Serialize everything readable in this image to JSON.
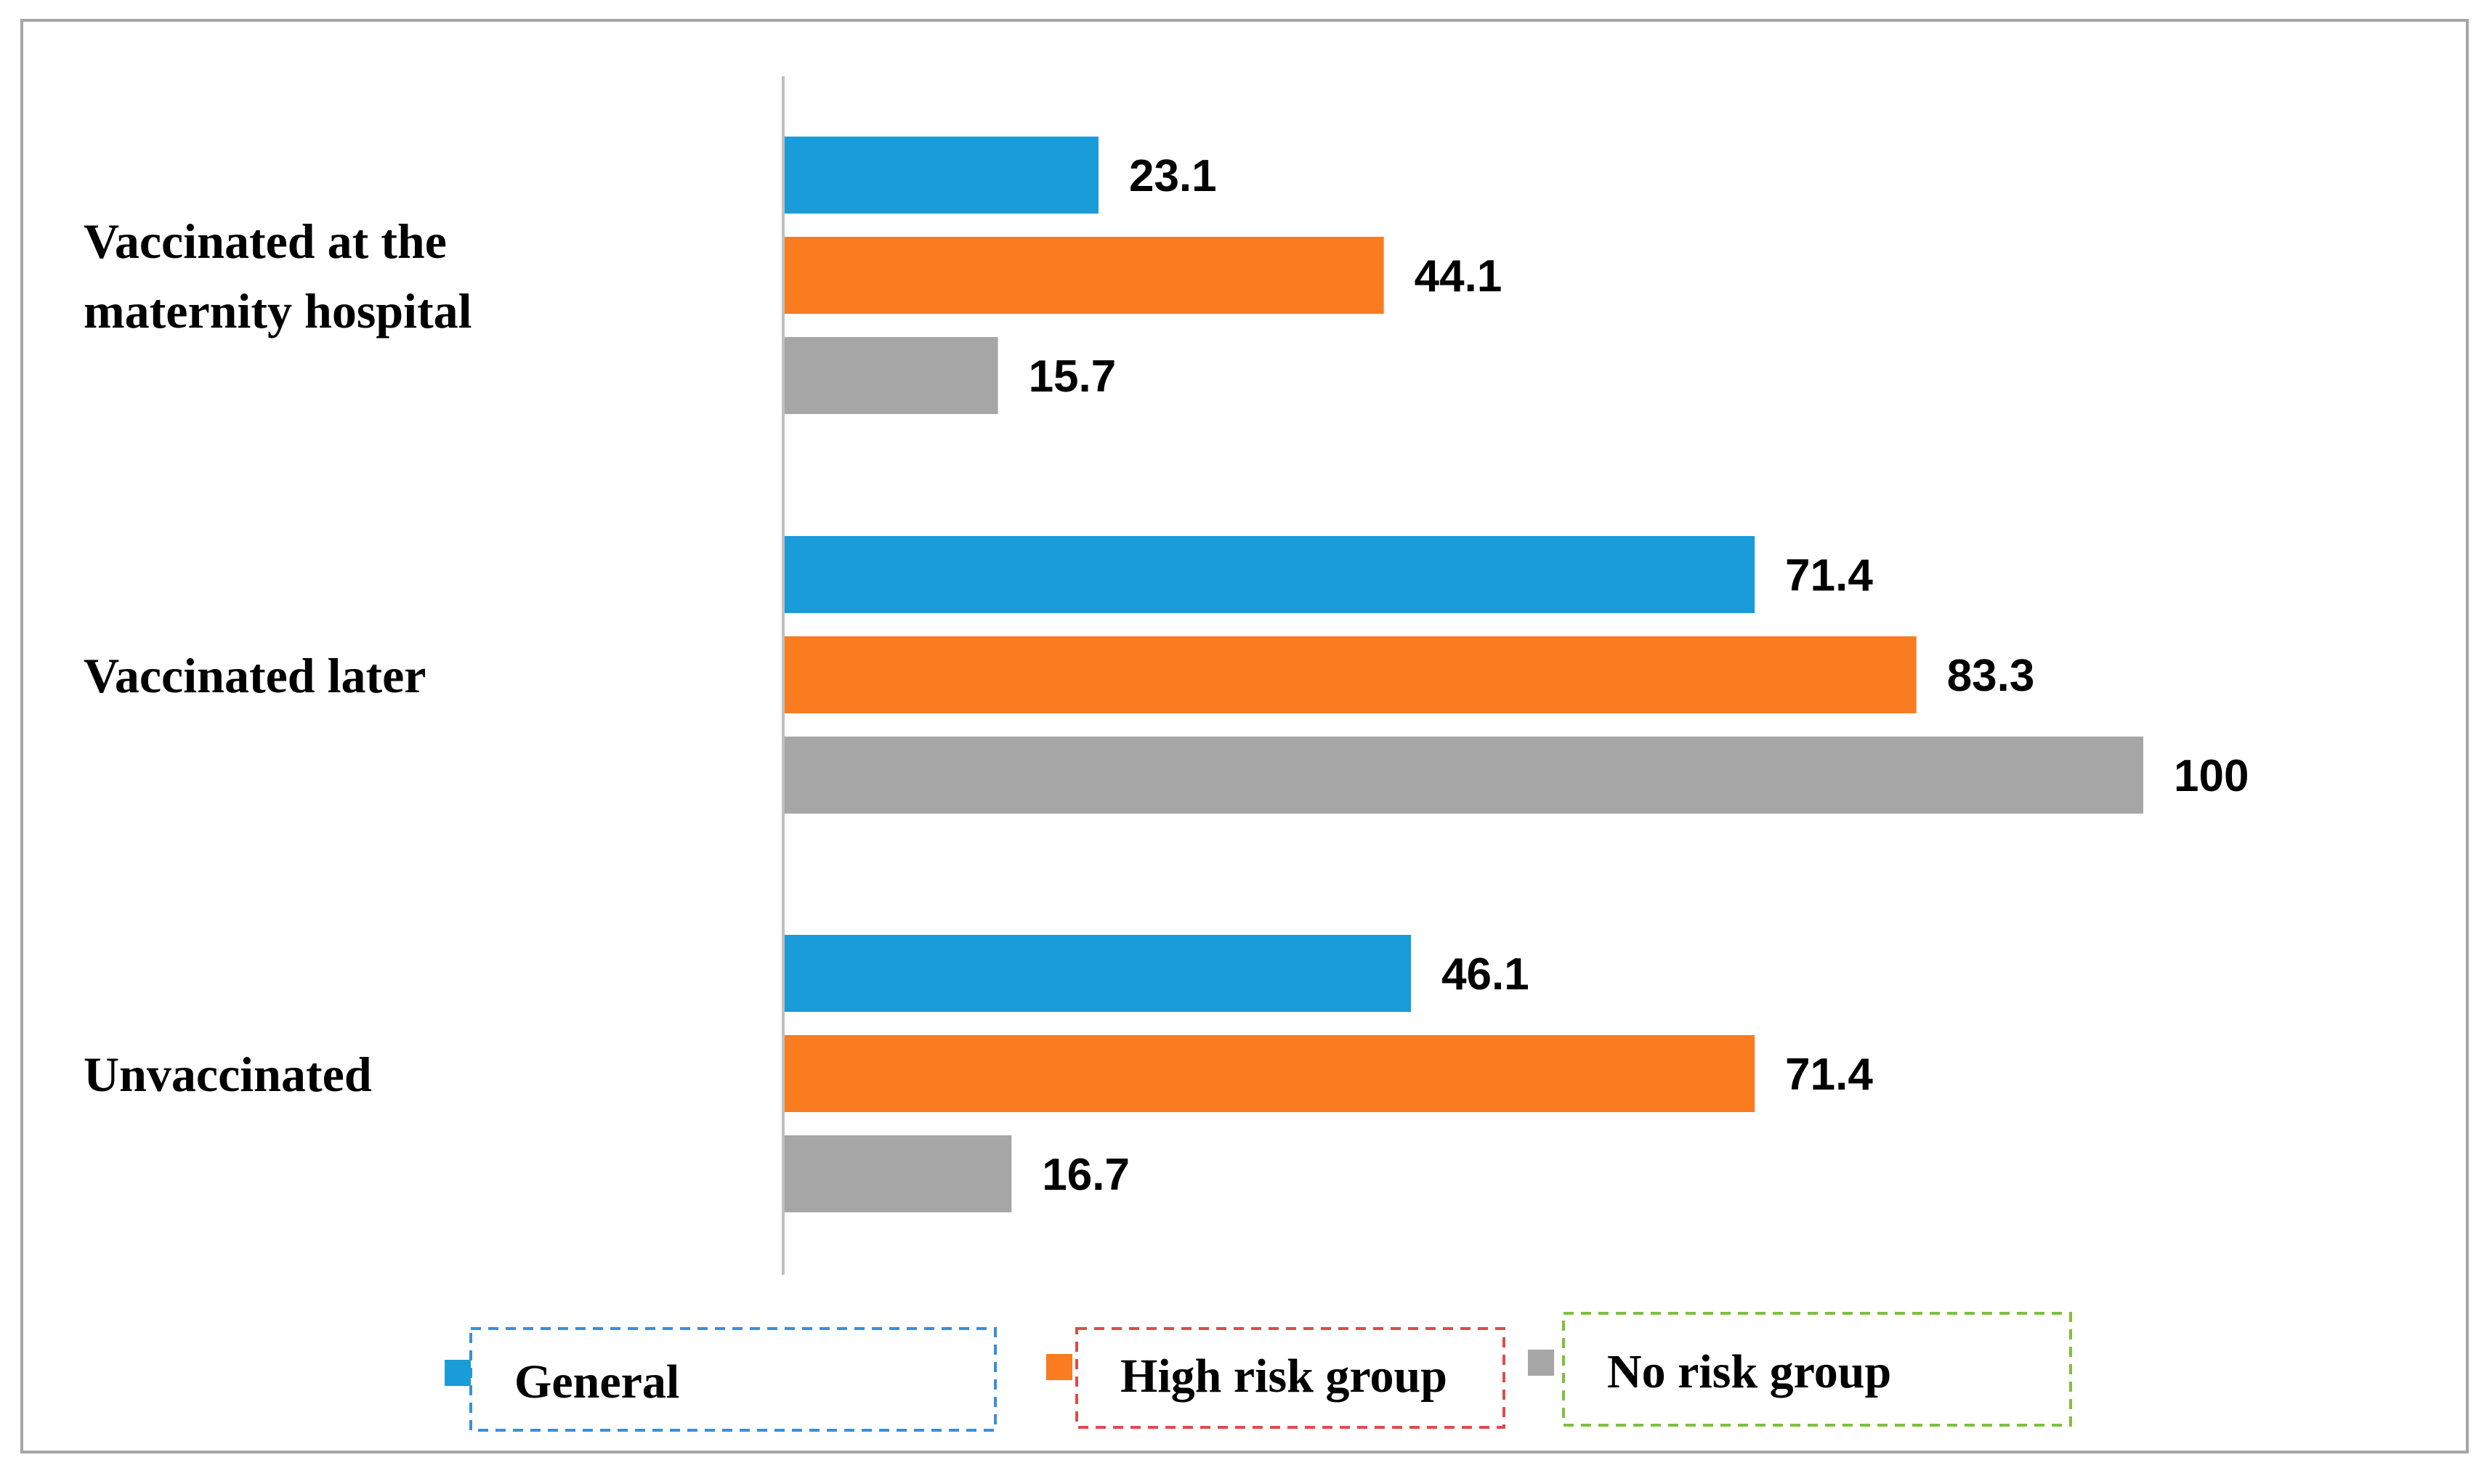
{
  "chart_data": {
    "type": "bar",
    "orientation": "horizontal",
    "categories": [
      "Vaccinated at the maternity hospital",
      "Vaccinated later",
      "Unvaccinated"
    ],
    "category_lines": [
      [
        "Vaccinated at the",
        "maternity hospital"
      ],
      [
        "Vaccinated later"
      ],
      [
        "Unvaccinated"
      ]
    ],
    "series": [
      {
        "name": "General",
        "color": "#1a9cd8",
        "values": [
          23.1,
          71.4,
          46.1
        ],
        "labels": [
          "23.1",
          "71.4",
          "46.1"
        ]
      },
      {
        "name": "High risk group",
        "color": "#f97c20",
        "values": [
          44.1,
          83.3,
          71.4
        ],
        "labels": [
          "44.1",
          "83.3",
          "71.4"
        ]
      },
      {
        "name": "No risk group",
        "color": "#a6a6a6",
        "values": [
          15.7,
          100,
          16.7
        ],
        "labels": [
          "15.7",
          "100",
          "16.7"
        ]
      }
    ],
    "xlim": [
      0,
      100
    ],
    "grid": false,
    "data_labels": true,
    "legend_position": "bottom",
    "legend_border_colors": [
      "#3b8fd6",
      "#e04b4b",
      "#7fbf3f"
    ]
  }
}
